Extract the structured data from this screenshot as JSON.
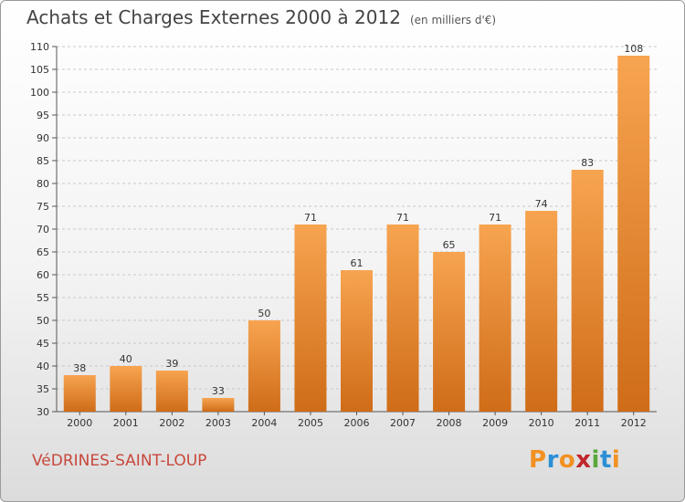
{
  "header": {
    "title": "Achats et Charges Externes 2000 à 2012",
    "unit": "(en milliers d'€)"
  },
  "footer": {
    "place": "VéDRINES-SAINT-LOUP",
    "brand_letters": [
      "P",
      "r",
      "o",
      "x",
      "i",
      "t",
      "i"
    ],
    "brand_colors": [
      "#f29122",
      "#2c8fd6",
      "#f29122",
      "#c1272d",
      "#58a83a",
      "#2c8fd6",
      "#f29122"
    ]
  },
  "colors": {
    "bar_top": "#f7a450",
    "bar_bottom": "#cf6c18",
    "grid": "#c8c8c8"
  },
  "chart_data": {
    "type": "bar",
    "title": "Achats et Charges Externes 2000 à 2012",
    "subtitle": "(en milliers d'€)",
    "categories": [
      "2000",
      "2001",
      "2002",
      "2003",
      "2004",
      "2005",
      "2006",
      "2007",
      "2008",
      "2009",
      "2010",
      "2011",
      "2012"
    ],
    "values": [
      38,
      40,
      39,
      33,
      50,
      71,
      61,
      71,
      65,
      71,
      74,
      83,
      108
    ],
    "ylim": [
      30,
      110
    ],
    "yticks": [
      30,
      35,
      40,
      45,
      50,
      55,
      60,
      65,
      70,
      75,
      80,
      85,
      90,
      95,
      100,
      105,
      110
    ],
    "grid": "horizontal dashed",
    "xlabel": "",
    "ylabel": ""
  }
}
